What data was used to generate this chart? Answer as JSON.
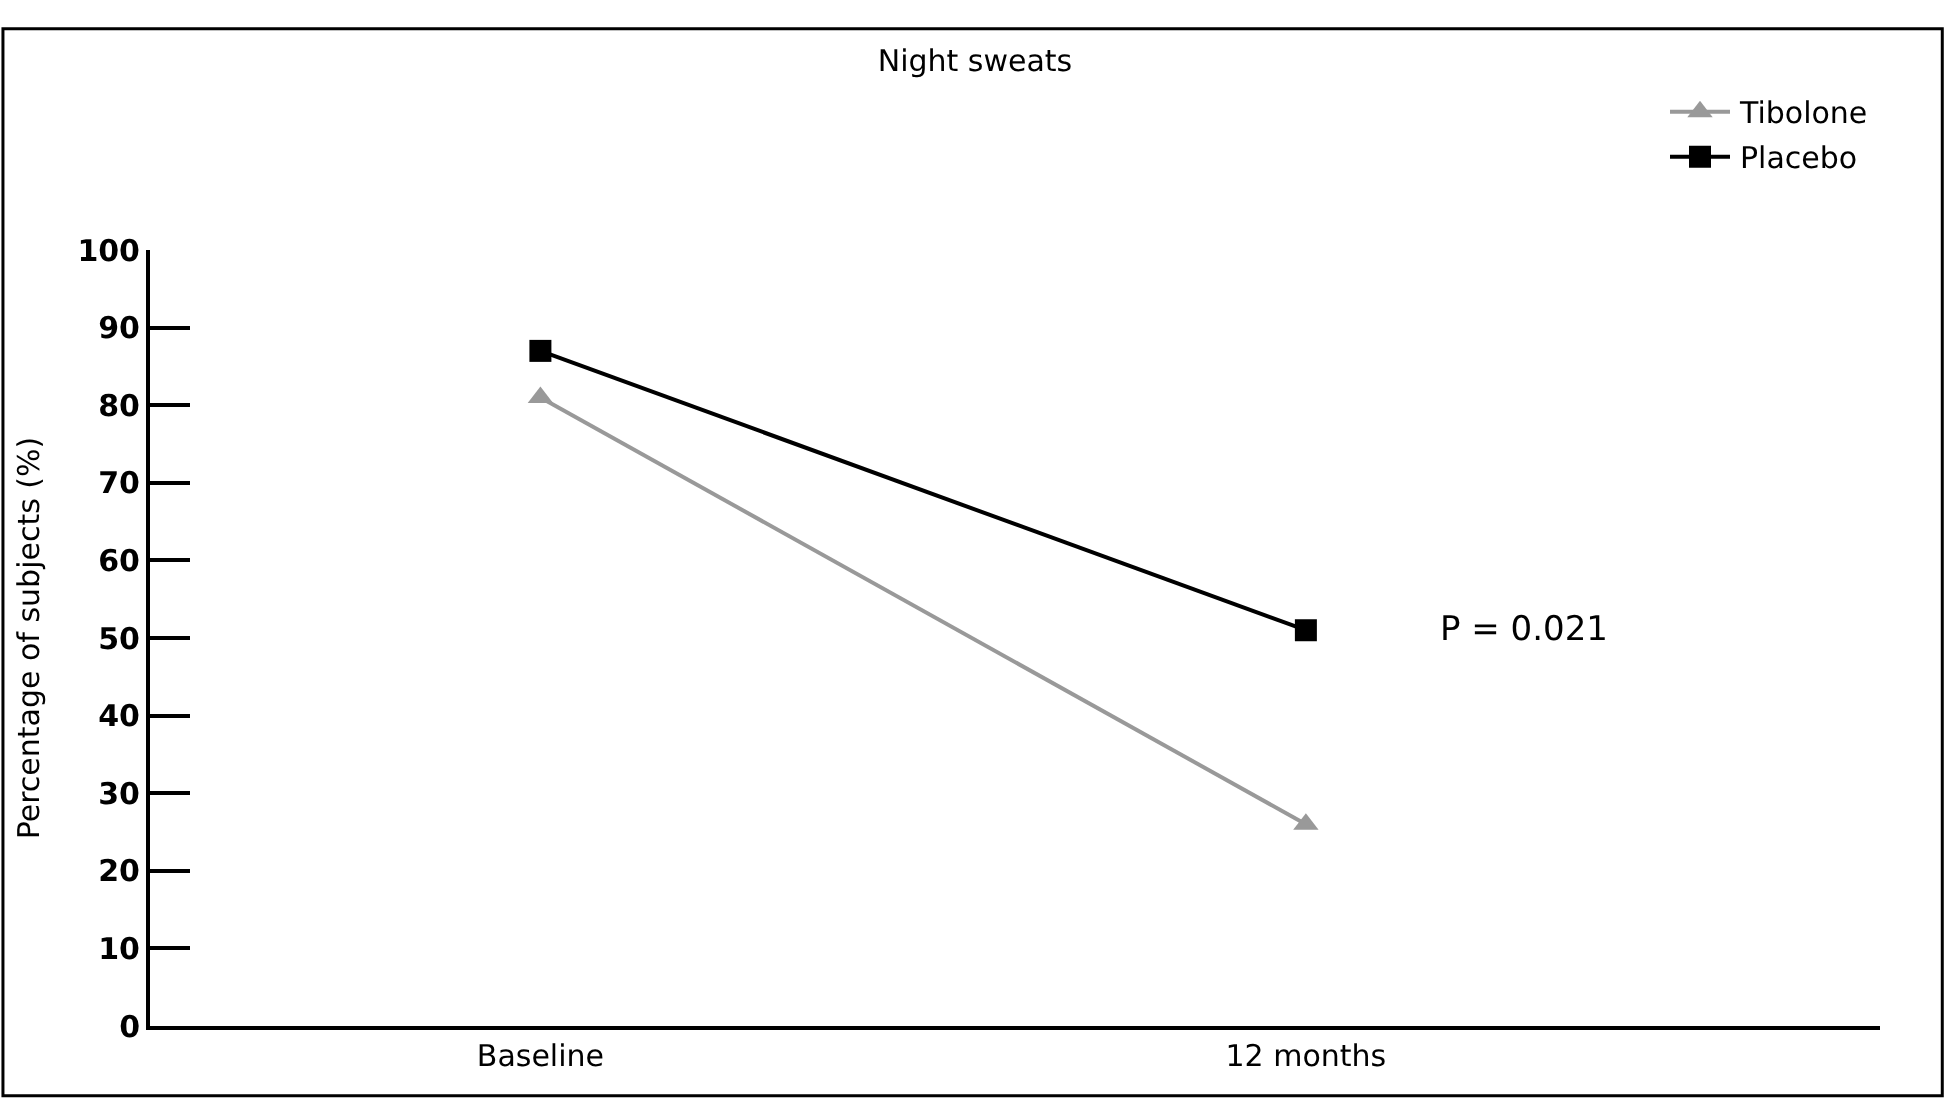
{
  "chart_data": {
    "type": "line",
    "title": "Night sweats",
    "ylabel": "Percentage of subjects (%)",
    "categories": [
      "Baseline",
      "12 months"
    ],
    "series": [
      {
        "name": "Tibolone",
        "color": "#999999",
        "marker": "triangle",
        "values": [
          81,
          26
        ]
      },
      {
        "name": "Placebo",
        "color": "#000000",
        "marker": "square",
        "values": [
          87,
          51
        ]
      }
    ],
    "ylim": [
      0,
      100
    ],
    "yticks": [
      0,
      10,
      20,
      30,
      40,
      50,
      60,
      70,
      80,
      90,
      100
    ],
    "annotations": [
      "P = 0.021"
    ],
    "legend": "top right"
  }
}
